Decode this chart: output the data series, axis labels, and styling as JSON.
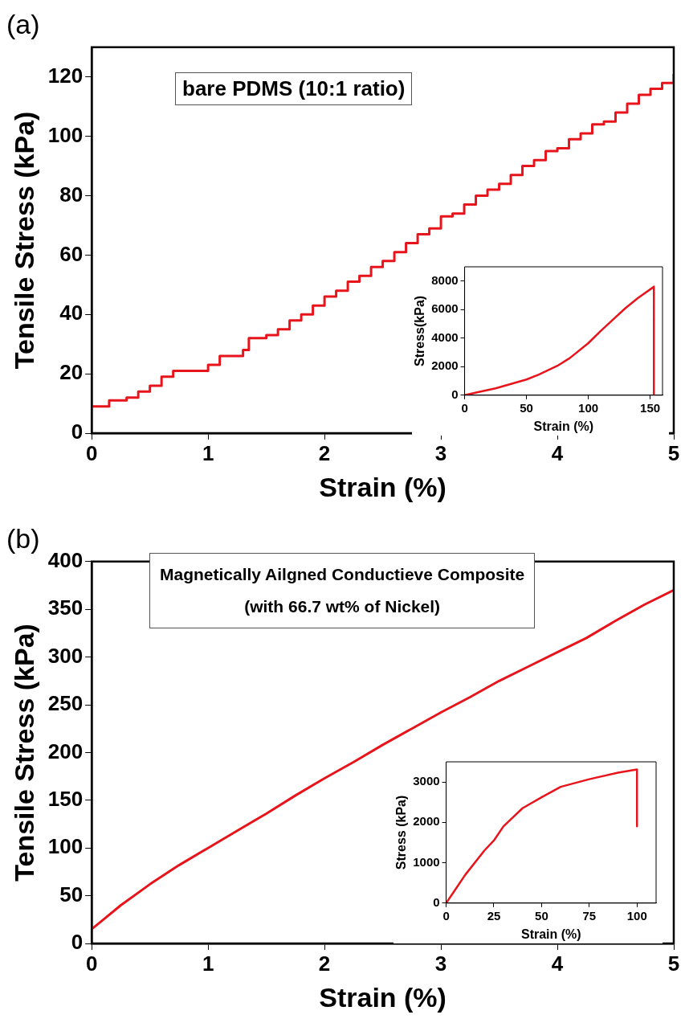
{
  "chart_data": [
    {
      "type": "step",
      "title": "(a)",
      "xlabel": "Strain (%)",
      "ylabel": "Tensile Stress (kPa)",
      "xlim": [
        0,
        5
      ],
      "xticks": [
        0,
        1,
        2,
        3,
        4,
        5
      ],
      "ylim": [
        0,
        130
      ],
      "yticks": [
        0,
        20,
        40,
        60,
        80,
        100,
        120
      ],
      "annotations": [
        "bare PDMS (10:1 ratio)"
      ],
      "series": [
        {
          "color": "#e8141c",
          "x": [
            0,
            0.15,
            0.3,
            0.4,
            0.5,
            0.6,
            0.7,
            1.0,
            1.1,
            1.3,
            1.35,
            1.5,
            1.6,
            1.7,
            1.8,
            1.9,
            2.0,
            2.1,
            2.2,
            2.3,
            2.4,
            2.5,
            2.6,
            2.7,
            2.8,
            2.9,
            3.0,
            3.1,
            3.2,
            3.3,
            3.4,
            3.5,
            3.6,
            3.7,
            3.8,
            3.9,
            4.0,
            4.1,
            4.2,
            4.3,
            4.4,
            4.5,
            4.6,
            4.7,
            4.8,
            4.9,
            5.0
          ],
          "values": [
            9,
            11,
            12,
            14,
            16,
            19,
            21,
            23,
            26,
            28,
            32,
            33,
            35,
            38,
            40,
            43,
            46,
            48,
            51,
            53,
            56,
            58,
            61,
            64,
            67,
            69,
            73,
            74,
            77,
            80,
            82,
            84,
            87,
            90,
            92,
            95,
            96,
            99,
            101,
            104,
            105,
            108,
            111,
            114,
            116,
            118,
            121
          ]
        }
      ]
    },
    {
      "type": "line",
      "xlabel": "Strain (%)",
      "ylabel": "Stress(kPa)",
      "xlim": [
        0,
        160
      ],
      "xticks": [
        0,
        50,
        100,
        150
      ],
      "ylim": [
        0,
        9000
      ],
      "yticks": [
        0,
        2000,
        4000,
        6000,
        8000
      ],
      "series": [
        {
          "color": "#e8141c",
          "x": [
            0,
            10,
            25,
            50,
            60,
            75,
            85,
            100,
            110,
            120,
            130,
            140,
            153,
            153
          ],
          "values": [
            0,
            200,
            480,
            1100,
            1450,
            2060,
            2600,
            3650,
            4500,
            5300,
            6100,
            6800,
            7600,
            0
          ]
        }
      ]
    },
    {
      "type": "line",
      "title": "(b)",
      "xlabel": "Strain (%)",
      "ylabel": "Tensile Stress (kPa)",
      "xlim": [
        0,
        5
      ],
      "xticks": [
        0,
        1,
        2,
        3,
        4,
        5
      ],
      "ylim": [
        0,
        400
      ],
      "yticks": [
        0,
        50,
        100,
        150,
        200,
        250,
        300,
        350,
        400
      ],
      "annotations": [
        "Magnetically Ailgned Conductieve Composite\n(with 66.7 wt% of Nickel)"
      ],
      "series": [
        {
          "color": "#e8141c",
          "x": [
            0,
            0.1,
            0.25,
            0.5,
            0.75,
            1,
            1.25,
            1.5,
            1.75,
            2,
            2.25,
            2.5,
            2.75,
            3,
            3.25,
            3.5,
            3.75,
            4,
            4.25,
            4.5,
            4.75,
            5
          ],
          "values": [
            15,
            25,
            40,
            62,
            82,
            100,
            118,
            136,
            155,
            173,
            190,
            208,
            225,
            242,
            258,
            275,
            290,
            305,
            320,
            338,
            355,
            370
          ]
        }
      ]
    },
    {
      "type": "line",
      "xlabel": "Strain (%)",
      "ylabel": "Stress (kPa)",
      "xlim": [
        0,
        110
      ],
      "xticks": [
        0,
        25,
        50,
        75,
        100
      ],
      "ylim": [
        0,
        3500
      ],
      "yticks": [
        0,
        1000,
        2000,
        3000
      ],
      "series": [
        {
          "color": "#e8141c",
          "x": [
            0,
            5,
            10,
            20,
            25,
            30,
            40,
            50,
            60,
            75,
            90,
            100,
            100
          ],
          "values": [
            0,
            350,
            700,
            1300,
            1550,
            1900,
            2350,
            2620,
            2880,
            3070,
            3230,
            3310,
            1900
          ]
        }
      ]
    }
  ]
}
